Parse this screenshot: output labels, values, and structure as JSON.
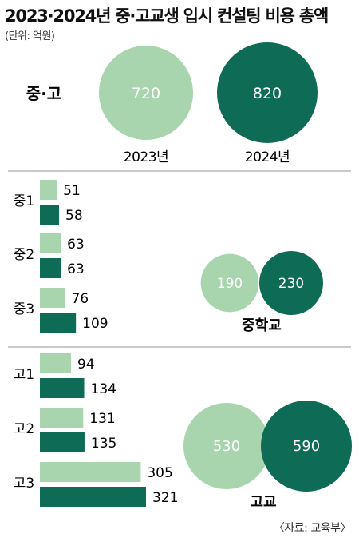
{
  "title": "2023·2024년 중·고교생 입시 컨설팅 비용 총액",
  "unit": "(단위: 억원)",
  "source": "〈자료: 교육부〉",
  "colors": {
    "y2023": "#a8d5ae",
    "y2024": "#0e6b55",
    "divider": "#b7b7b7"
  },
  "chart_data": [
    {
      "type": "bubble",
      "category": "중·고",
      "series": [
        {
          "name": "2023년",
          "value": 720
        },
        {
          "name": "2024년",
          "value": 820
        }
      ]
    },
    {
      "type": "bar",
      "orientation": "horizontal",
      "categories": [
        "중1",
        "중2",
        "중3"
      ],
      "series": [
        {
          "name": "2023년",
          "values": [
            51,
            63,
            76
          ]
        },
        {
          "name": "2024년",
          "values": [
            58,
            63,
            109
          ]
        }
      ],
      "total": {
        "label": "중학교",
        "values": [
          190,
          230
        ]
      }
    },
    {
      "type": "bar",
      "orientation": "horizontal",
      "categories": [
        "고1",
        "고2",
        "고3"
      ],
      "series": [
        {
          "name": "2023년",
          "values": [
            94,
            131,
            305
          ]
        },
        {
          "name": "2024년",
          "values": [
            134,
            135,
            321
          ]
        }
      ],
      "total": {
        "label": "고교",
        "values": [
          530,
          590
        ]
      }
    }
  ]
}
